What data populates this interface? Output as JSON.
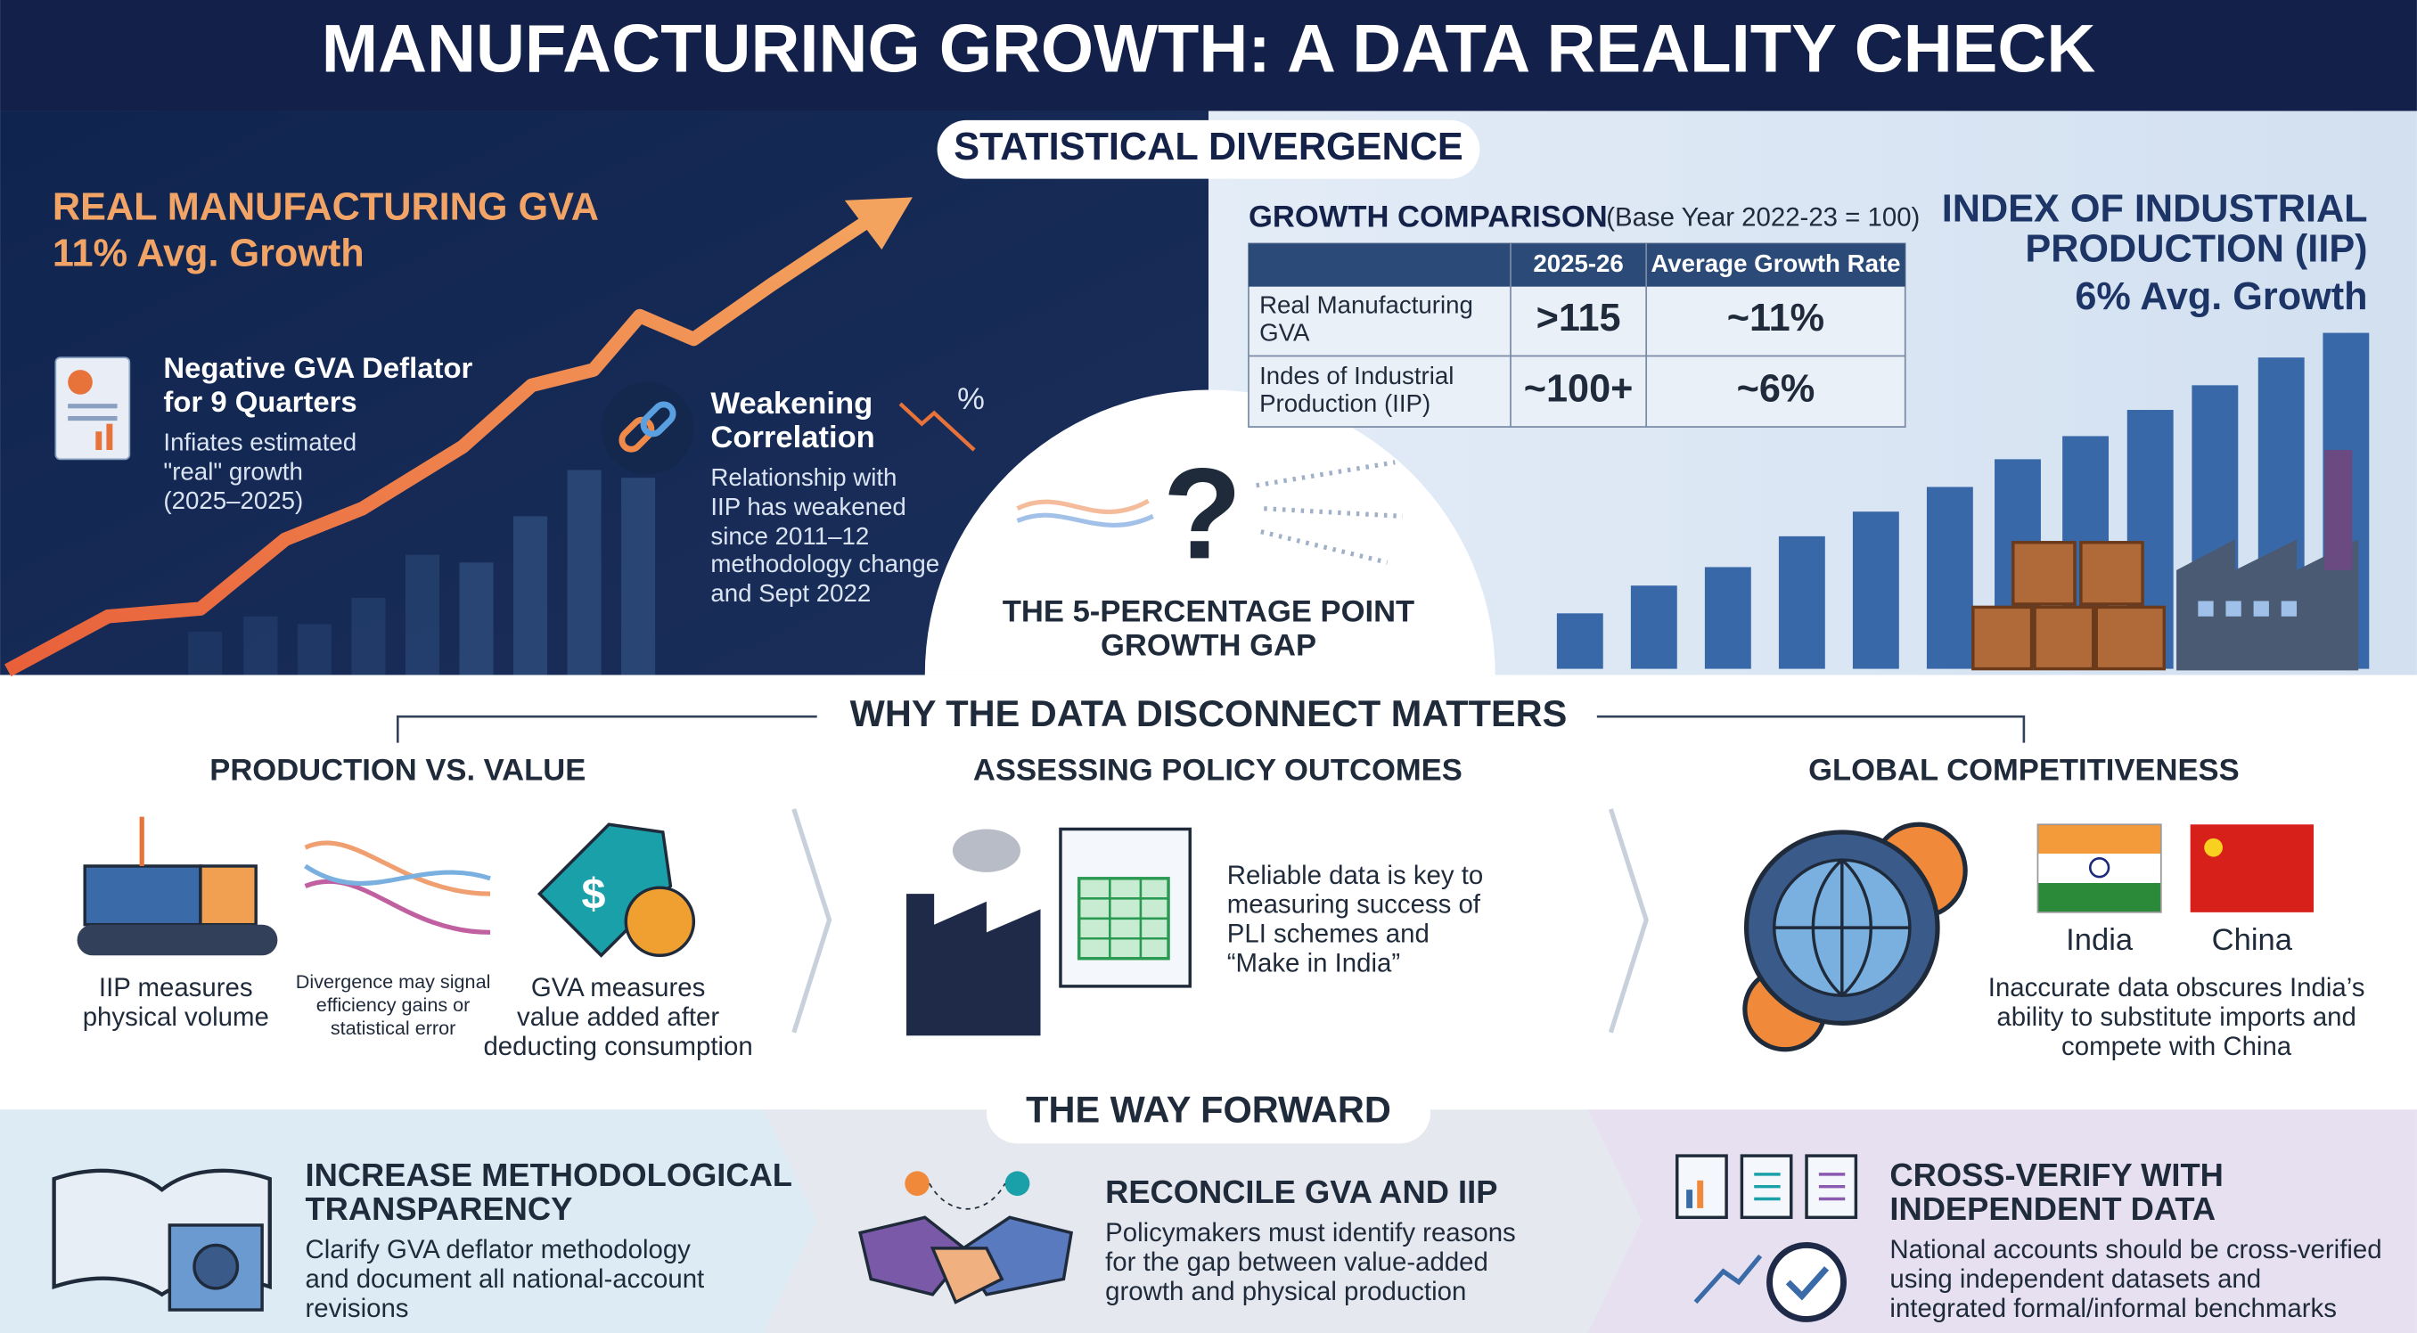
{
  "header": {
    "title": "MANUFACTURING GROWTH: A DATA REALITY CHECK"
  },
  "divergence": {
    "title": "STATISTICAL DIVERGENCE",
    "gva": {
      "title": "REAL MANUFACTURING GVA",
      "subtitle": "11% Avg. Growth"
    },
    "deflator": {
      "title_lines": [
        "Negative GVA Deflator",
        "for 9 Quarters"
      ],
      "text_lines": [
        "Infiates estimated",
        "\"real\" growth",
        "(2025–2025)"
      ]
    },
    "correlation": {
      "title_lines": [
        "Weakening",
        "Correlation"
      ],
      "icon": "%",
      "text_lines": [
        "Relationship with",
        "IIP has weakened",
        "since 2011–12",
        "methodology change",
        "and Sept 2022"
      ]
    },
    "gap": {
      "lines": [
        "THE 5-PERCENTAGE POINT",
        "GROWTH GAP"
      ],
      "icon": "?"
    },
    "iip": {
      "lines": [
        "INDEX OF INDUSTRIAL",
        "PRODUCTION (IIP)",
        "6% Avg. Growth"
      ]
    },
    "table": {
      "title": "GROWTH COMPARISON",
      "note": "(Base Year 2022-23 = 100)",
      "columns": [
        "2025-26",
        "Average Growth Rate"
      ],
      "rows": [
        {
          "label_lines": [
            "Real Manufacturing",
            "GVA"
          ],
          "cells": [
            ">115",
            "~11%"
          ]
        },
        {
          "label_lines": [
            "Indes of Industrial",
            "Production (IIP)"
          ],
          "cells": [
            "~100+",
            "~6%"
          ]
        }
      ]
    }
  },
  "matters": {
    "title": "WHY THE DATA DISCONNECT MATTERS",
    "production": {
      "title": "PRODUCTION VS. VALUE",
      "iip_lines": [
        "IIP measures",
        "physical volume"
      ],
      "middle_lines": [
        "Divergence may signal",
        "efficiency gains or",
        "statistical error"
      ],
      "gva_lines": [
        "GVA measures",
        "value added after",
        "deducting consumption"
      ],
      "icon": "$"
    },
    "policy": {
      "title": "ASSESSING POLICY OUTCOMES",
      "text_lines": [
        "Reliable data is key to",
        "measuring success of",
        "PLI schemes and",
        "“Make in India”"
      ]
    },
    "global": {
      "title": "GLOBAL COMPETITIVENESS",
      "flags": [
        "India",
        "China"
      ],
      "text_lines": [
        "Inaccurate data obscures India’s",
        "ability to substitute imports and",
        "compete with China"
      ]
    }
  },
  "forward": {
    "title": "THE WAY FORWARD",
    "items": [
      {
        "title_lines": [
          "INCREASE METHODOLOGICAL",
          "TRANSPARENCY"
        ],
        "text_lines": [
          "Clarify GVA deflator methodology",
          "and document all national-account",
          "revisions"
        ]
      },
      {
        "title_lines": [
          "RECONCILE GVA AND IIP"
        ],
        "text_lines": [
          "Policymakers must identify reasons",
          "for the gap between value-added",
          "growth and physical production"
        ]
      },
      {
        "title_lines": [
          "CROSS-VERIFY WITH",
          "INDEPENDENT DATA"
        ],
        "text_lines": [
          "National accounts should be cross-verified",
          "using independent datasets and",
          "integrated formal/informal benchmarks"
        ]
      }
    ]
  }
}
